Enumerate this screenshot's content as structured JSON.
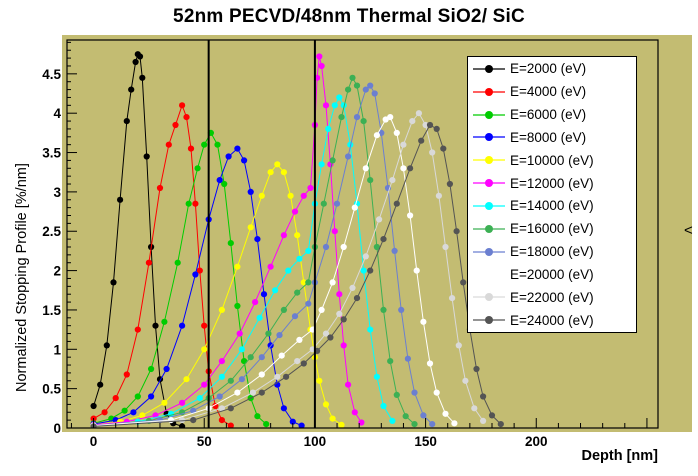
{
  "page": {
    "side_glyph": "<"
  },
  "chart_data": {
    "type": "line",
    "title": "52nm PECVD/48nm Thermal SiO2/ SiC",
    "xlabel": "Depth [nm]",
    "ylabel": "Normalized Stopping Profile [%/nm]",
    "xlim": [
      -12,
      255
    ],
    "ylim": [
      0,
      4.93
    ],
    "xticks": [
      0,
      50,
      100,
      150,
      200
    ],
    "yticks": [
      0,
      0.5,
      1,
      1.5,
      2,
      2.5,
      3,
      3.5,
      4,
      4.5
    ],
    "plot_bg": "#c3bc72",
    "grid": false,
    "legend_position": "top-right",
    "marker": "filled-circle",
    "boundary_lines_x": [
      52,
      100
    ],
    "series": [
      {
        "name": "E=2000 (eV)",
        "color": "#000000",
        "points": [
          [
            0,
            0.28
          ],
          [
            3,
            0.55
          ],
          [
            6,
            1.05
          ],
          [
            9,
            1.85
          ],
          [
            12,
            2.9
          ],
          [
            15,
            3.9
          ],
          [
            17,
            4.3
          ],
          [
            19,
            4.65
          ],
          [
            20,
            4.75
          ],
          [
            21,
            4.72
          ],
          [
            22,
            4.45
          ],
          [
            24,
            3.45
          ],
          [
            26,
            2.3
          ],
          [
            28,
            1.3
          ],
          [
            30,
            0.62
          ],
          [
            33,
            0.18
          ],
          [
            36,
            0.06
          ],
          [
            40,
            0.02
          ]
        ]
      },
      {
        "name": "E=4000 (eV)",
        "color": "#ff0000",
        "points": [
          [
            0,
            0.12
          ],
          [
            5,
            0.2
          ],
          [
            10,
            0.38
          ],
          [
            15,
            0.68
          ],
          [
            20,
            1.25
          ],
          [
            25,
            2.1
          ],
          [
            30,
            3.05
          ],
          [
            34,
            3.6
          ],
          [
            37,
            3.85
          ],
          [
            40,
            4.1
          ],
          [
            42,
            3.95
          ],
          [
            44,
            3.55
          ],
          [
            46,
            2.85
          ],
          [
            48,
            2.0
          ],
          [
            50,
            1.3
          ],
          [
            52,
            0.72
          ],
          [
            55,
            0.28
          ],
          [
            58,
            0.1
          ],
          [
            62,
            0.03
          ]
        ]
      },
      {
        "name": "E=6000 (eV)",
        "color": "#00cc00",
        "points": [
          [
            0,
            0.06
          ],
          [
            8,
            0.12
          ],
          [
            14,
            0.22
          ],
          [
            20,
            0.4
          ],
          [
            26,
            0.75
          ],
          [
            32,
            1.35
          ],
          [
            38,
            2.1
          ],
          [
            43,
            2.85
          ],
          [
            47,
            3.3
          ],
          [
            50,
            3.6
          ],
          [
            53,
            3.75
          ],
          [
            56,
            3.6
          ],
          [
            59,
            3.1
          ],
          [
            62,
            2.35
          ],
          [
            65,
            1.55
          ],
          [
            68,
            0.85
          ],
          [
            71,
            0.38
          ],
          [
            74,
            0.15
          ],
          [
            78,
            0.05
          ]
        ]
      },
      {
        "name": "E=8000 (eV)",
        "color": "#0000ff",
        "points": [
          [
            0,
            0.05
          ],
          [
            10,
            0.1
          ],
          [
            18,
            0.2
          ],
          [
            26,
            0.4
          ],
          [
            33,
            0.75
          ],
          [
            40,
            1.3
          ],
          [
            46,
            1.95
          ],
          [
            52,
            2.65
          ],
          [
            57,
            3.15
          ],
          [
            61,
            3.45
          ],
          [
            65,
            3.55
          ],
          [
            68,
            3.4
          ],
          [
            71,
            3.0
          ],
          [
            74,
            2.4
          ],
          [
            77,
            1.7
          ],
          [
            80,
            1.05
          ],
          [
            83,
            0.55
          ],
          [
            86,
            0.25
          ],
          [
            90,
            0.08
          ],
          [
            94,
            0.03
          ]
        ]
      },
      {
        "name": "E=10000 (eV)",
        "color": "#ffff00",
        "points": [
          [
            0,
            0.04
          ],
          [
            12,
            0.08
          ],
          [
            22,
            0.16
          ],
          [
            32,
            0.32
          ],
          [
            42,
            0.62
          ],
          [
            50,
            1.0
          ],
          [
            58,
            1.5
          ],
          [
            65,
            2.05
          ],
          [
            71,
            2.55
          ],
          [
            76,
            2.95
          ],
          [
            80,
            3.25
          ],
          [
            83,
            3.35
          ],
          [
            86,
            3.25
          ],
          [
            89,
            2.95
          ],
          [
            92,
            2.45
          ],
          [
            95,
            1.85
          ],
          [
            98,
            1.25
          ],
          [
            100,
            0.9
          ],
          [
            102,
            0.6
          ],
          [
            105,
            0.3
          ],
          [
            108,
            0.12
          ],
          [
            112,
            0.04
          ]
        ]
      },
      {
        "name": "E=12000 (eV)",
        "color": "#ff00ff",
        "points": [
          [
            0,
            0.04
          ],
          [
            15,
            0.08
          ],
          [
            28,
            0.16
          ],
          [
            40,
            0.32
          ],
          [
            50,
            0.55
          ],
          [
            58,
            0.85
          ],
          [
            66,
            1.2
          ],
          [
            73,
            1.6
          ],
          [
            80,
            2.05
          ],
          [
            86,
            2.45
          ],
          [
            91,
            2.75
          ],
          [
            95,
            2.95
          ],
          [
            98,
            3.05
          ],
          [
            100,
            3.85
          ],
          [
            101,
            4.45
          ],
          [
            102,
            4.72
          ],
          [
            103,
            4.6
          ],
          [
            105,
            4.1
          ],
          [
            107,
            3.35
          ],
          [
            109,
            2.5
          ],
          [
            111,
            1.7
          ],
          [
            113,
            1.05
          ],
          [
            115,
            0.55
          ],
          [
            118,
            0.2
          ],
          [
            121,
            0.07
          ]
        ]
      },
      {
        "name": "E=14000 (eV)",
        "color": "#00ffff",
        "points": [
          [
            0,
            0.03
          ],
          [
            20,
            0.08
          ],
          [
            35,
            0.18
          ],
          [
            48,
            0.38
          ],
          [
            58,
            0.65
          ],
          [
            67,
            1.0
          ],
          [
            75,
            1.4
          ],
          [
            82,
            1.75
          ],
          [
            88,
            2.0
          ],
          [
            93,
            2.15
          ],
          [
            97,
            2.25
          ],
          [
            100,
            2.85
          ],
          [
            103,
            3.35
          ],
          [
            106,
            3.8
          ],
          [
            109,
            4.1
          ],
          [
            111,
            4.2
          ],
          [
            113,
            4.1
          ],
          [
            116,
            3.6
          ],
          [
            119,
            2.85
          ],
          [
            122,
            2.0
          ],
          [
            125,
            1.25
          ],
          [
            128,
            0.65
          ],
          [
            131,
            0.28
          ],
          [
            135,
            0.09
          ]
        ]
      },
      {
        "name": "E=16000 (eV)",
        "color": "#3cb054",
        "points": [
          [
            0,
            0.03
          ],
          [
            25,
            0.09
          ],
          [
            40,
            0.2
          ],
          [
            52,
            0.38
          ],
          [
            62,
            0.6
          ],
          [
            71,
            0.9
          ],
          [
            79,
            1.2
          ],
          [
            86,
            1.5
          ],
          [
            92,
            1.72
          ],
          [
            97,
            1.85
          ],
          [
            100,
            2.3
          ],
          [
            104,
            2.85
          ],
          [
            108,
            3.4
          ],
          [
            112,
            3.95
          ],
          [
            115,
            4.3
          ],
          [
            117,
            4.45
          ],
          [
            119,
            4.35
          ],
          [
            122,
            3.9
          ],
          [
            125,
            3.15
          ],
          [
            128,
            2.3
          ],
          [
            131,
            1.5
          ],
          [
            134,
            0.85
          ],
          [
            137,
            0.42
          ],
          [
            141,
            0.15
          ],
          [
            145,
            0.05
          ]
        ]
      },
      {
        "name": "E=18000 (eV)",
        "color": "#6b7fd0",
        "points": [
          [
            0,
            0.03
          ],
          [
            30,
            0.1
          ],
          [
            45,
            0.22
          ],
          [
            57,
            0.4
          ],
          [
            67,
            0.62
          ],
          [
            76,
            0.9
          ],
          [
            84,
            1.18
          ],
          [
            91,
            1.42
          ],
          [
            97,
            1.58
          ],
          [
            100,
            1.85
          ],
          [
            105,
            2.3
          ],
          [
            110,
            2.85
          ],
          [
            115,
            3.45
          ],
          [
            119,
            3.95
          ],
          [
            123,
            4.3
          ],
          [
            125,
            4.35
          ],
          [
            127,
            4.25
          ],
          [
            130,
            3.75
          ],
          [
            133,
            3.05
          ],
          [
            136,
            2.25
          ],
          [
            139,
            1.5
          ],
          [
            142,
            0.88
          ],
          [
            145,
            0.45
          ],
          [
            149,
            0.16
          ],
          [
            153,
            0.05
          ]
        ]
      },
      {
        "name": "E=20000 (eV)",
        "color": "#ffffff",
        "points": [
          [
            0,
            0.03
          ],
          [
            35,
            0.1
          ],
          [
            52,
            0.25
          ],
          [
            65,
            0.45
          ],
          [
            76,
            0.68
          ],
          [
            85,
            0.92
          ],
          [
            93,
            1.12
          ],
          [
            99,
            1.25
          ],
          [
            103,
            1.5
          ],
          [
            108,
            1.85
          ],
          [
            113,
            2.3
          ],
          [
            118,
            2.8
          ],
          [
            123,
            3.3
          ],
          [
            128,
            3.72
          ],
          [
            132,
            3.92
          ],
          [
            134,
            3.95
          ],
          [
            137,
            3.75
          ],
          [
            140,
            3.3
          ],
          [
            143,
            2.7
          ],
          [
            146,
            2.0
          ],
          [
            149,
            1.35
          ],
          [
            152,
            0.82
          ],
          [
            155,
            0.45
          ],
          [
            159,
            0.18
          ],
          [
            163,
            0.06
          ]
        ]
      },
      {
        "name": "E=22000 (eV)",
        "color": "#d9d9d9",
        "points": [
          [
            0,
            0.02
          ],
          [
            40,
            0.1
          ],
          [
            58,
            0.25
          ],
          [
            72,
            0.45
          ],
          [
            83,
            0.65
          ],
          [
            92,
            0.85
          ],
          [
            99,
            1.0
          ],
          [
            105,
            1.2
          ],
          [
            111,
            1.45
          ],
          [
            117,
            1.78
          ],
          [
            123,
            2.18
          ],
          [
            129,
            2.65
          ],
          [
            135,
            3.15
          ],
          [
            140,
            3.6
          ],
          [
            144,
            3.9
          ],
          [
            147,
            4.0
          ],
          [
            150,
            3.85
          ],
          [
            153,
            3.5
          ],
          [
            156,
            2.95
          ],
          [
            159,
            2.3
          ],
          [
            162,
            1.65
          ],
          [
            165,
            1.05
          ],
          [
            168,
            0.6
          ],
          [
            172,
            0.25
          ],
          [
            176,
            0.09
          ]
        ]
      },
      {
        "name": "E=24000 (eV)",
        "color": "#545454",
        "points": [
          [
            0,
            0.02
          ],
          [
            45,
            0.1
          ],
          [
            62,
            0.25
          ],
          [
            76,
            0.45
          ],
          [
            87,
            0.65
          ],
          [
            95,
            0.82
          ],
          [
            101,
            0.98
          ],
          [
            107,
            1.15
          ],
          [
            113,
            1.38
          ],
          [
            119,
            1.65
          ],
          [
            125,
            2.0
          ],
          [
            131,
            2.4
          ],
          [
            137,
            2.85
          ],
          [
            143,
            3.3
          ],
          [
            148,
            3.65
          ],
          [
            152,
            3.85
          ],
          [
            155,
            3.8
          ],
          [
            158,
            3.55
          ],
          [
            161,
            3.1
          ],
          [
            164,
            2.5
          ],
          [
            167,
            1.85
          ],
          [
            170,
            1.25
          ],
          [
            173,
            0.75
          ],
          [
            176,
            0.4
          ],
          [
            180,
            0.16
          ],
          [
            184,
            0.05
          ]
        ]
      }
    ]
  }
}
